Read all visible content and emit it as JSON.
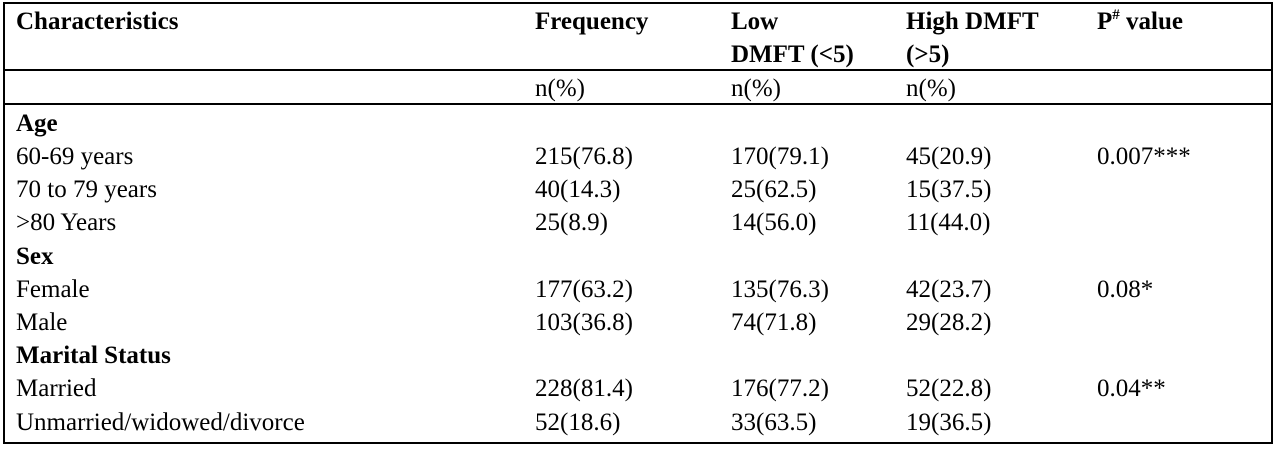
{
  "table": {
    "headers": {
      "characteristics": "Characteristics",
      "frequency": "Frequency",
      "low_dmft_line1": "Low",
      "low_dmft_line2": "DMFT (<5)",
      "high_dmft_line1": "High DMFT",
      "high_dmft_line2": "(>5)",
      "p_value_prefix": "P",
      "p_value_sup": "#",
      "p_value_suffix": " value"
    },
    "units": {
      "frequency": "n(%)",
      "low_dmft": "n(%)",
      "high_dmft": "n(%)"
    },
    "groups": [
      {
        "label": "Age",
        "rows": [
          {
            "characteristic": "60-69 years",
            "frequency": "215(76.8)",
            "low": "170(79.1)",
            "high": "45(20.9)",
            "p": "0.007***"
          },
          {
            "characteristic": "70 to 79 years",
            "frequency": "40(14.3)",
            "low": "25(62.5)",
            "high": "15(37.5)",
            "p": ""
          },
          {
            "characteristic": ">80 Years",
            "frequency": "25(8.9)",
            "low": "14(56.0)",
            "high": "11(44.0)",
            "p": ""
          }
        ]
      },
      {
        "label": "Sex",
        "rows": [
          {
            "characteristic": "Female",
            "frequency": "177(63.2)",
            "low": "135(76.3)",
            "high": "42(23.7)",
            "p": "0.08*"
          },
          {
            "characteristic": "Male",
            "frequency": "103(36.8)",
            "low": "74(71.8)",
            "high": "29(28.2)",
            "p": ""
          }
        ]
      },
      {
        "label": "Marital Status",
        "rows": [
          {
            "characteristic": "Married",
            "frequency": "228(81.4)",
            "low": "176(77.2)",
            "high": "52(22.8)",
            "p": "0.04**"
          },
          {
            "characteristic": "Unmarried/widowed/divorce",
            "frequency": "52(18.6)",
            "low": "33(63.5)",
            "high": "19(36.5)",
            "p": ""
          }
        ]
      }
    ]
  }
}
